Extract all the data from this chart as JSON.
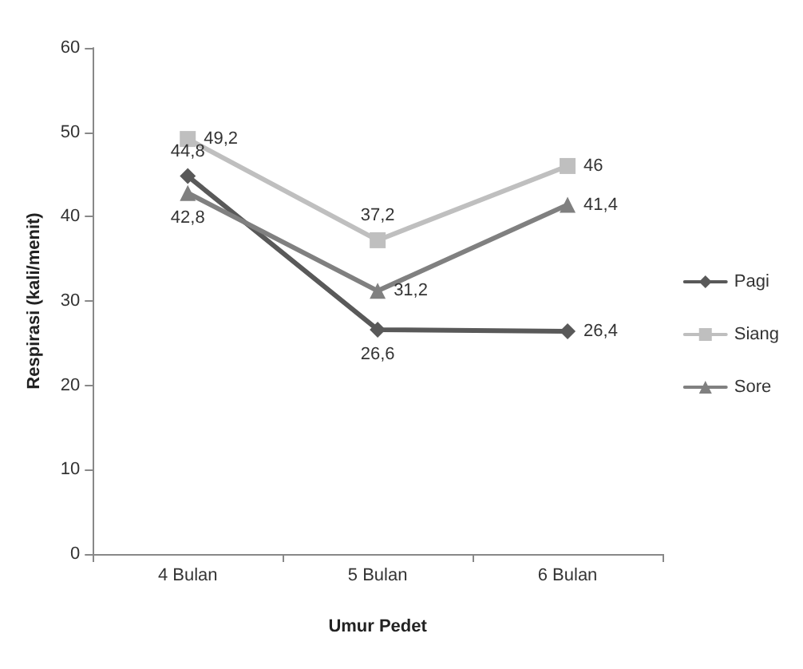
{
  "chart_data": {
    "type": "line",
    "xlabel": "Umur Pedet",
    "ylabel": "Respirasi (kali/menit)",
    "categories": [
      "4 Bulan",
      "5 Bulan",
      "6 Bulan"
    ],
    "series": [
      {
        "name": "Pagi",
        "color": "#595959",
        "values": [
          44.8,
          26.6,
          26.4
        ],
        "value_labels": [
          "44,8",
          "26,6",
          "26,4"
        ],
        "marker": "diamond"
      },
      {
        "name": "Siang",
        "color": "#bfbfbf",
        "values": [
          49.2,
          37.2,
          46
        ],
        "value_labels": [
          "49,2",
          "37,2",
          "46"
        ],
        "marker": "square"
      },
      {
        "name": "Sore",
        "color": "#808080",
        "values": [
          42.8,
          31.2,
          41.4
        ],
        "value_labels": [
          "42,8",
          "31,2",
          "41,4"
        ],
        "marker": "triangle"
      }
    ],
    "ylim": [
      0,
      60
    ],
    "yticks": [
      0,
      10,
      20,
      30,
      40,
      50,
      60
    ],
    "grid": false,
    "legend": "right"
  }
}
